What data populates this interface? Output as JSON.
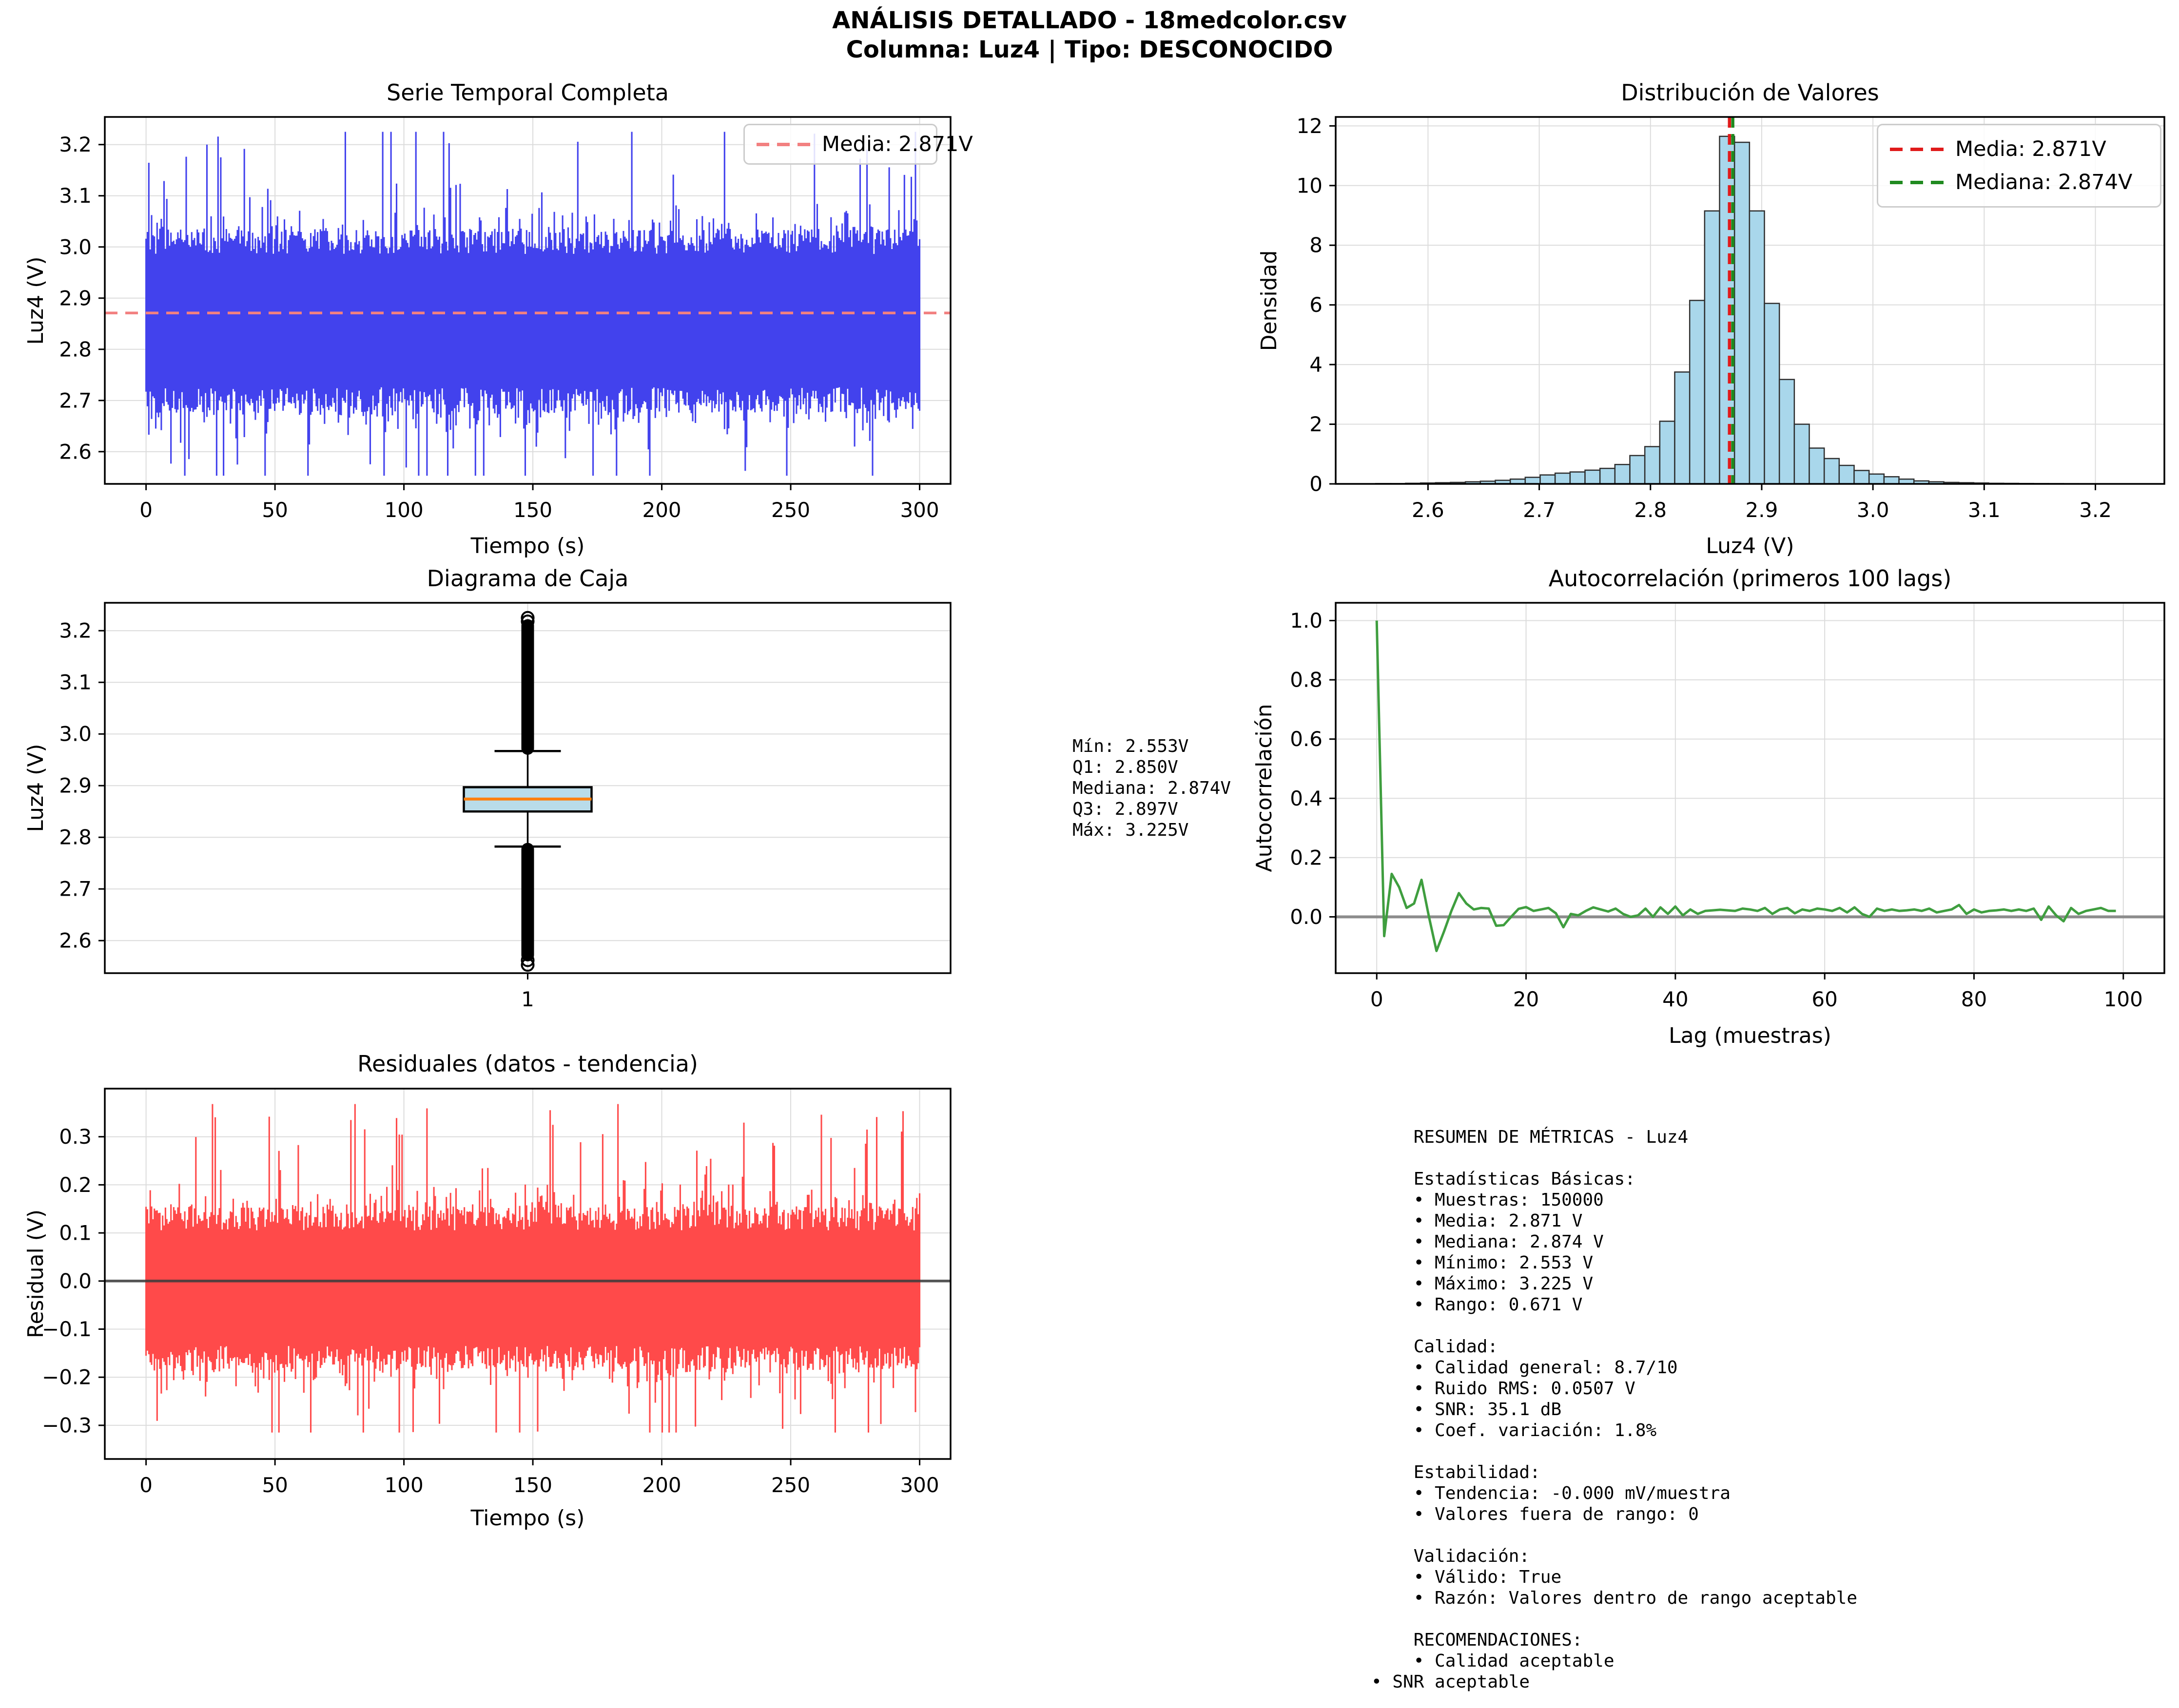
{
  "header": {
    "line1": "ANÁLISIS DETALLADO - 18medcolor.csv",
    "line2": "Columna: Luz4 | Tipo: DESCONOCIDO"
  },
  "colors": {
    "series_blue": "#4242ed",
    "mean_salmon": "#f28080",
    "hist_fill": "#a9d7eb",
    "hist_edge": "#2e2e2e",
    "mean_red": "#e01b1b",
    "median_green": "#1f8a1f",
    "box_fill": "#b9dcea",
    "box_median_orange": "#ff7f0e",
    "acf_green": "#3f9e3f",
    "acf_zero_gray": "#8c8c8c",
    "resid_red": "#ff4a4a",
    "resid_zero_dark": "#3c3c3c",
    "grid": "#dcdcdc",
    "spine": "#000000"
  },
  "chart_data": [
    {
      "id": "serie_temporal",
      "type": "line",
      "title": "Serie Temporal Completa",
      "xlabel": "Tiempo (s)",
      "ylabel": "Luz4 (V)",
      "xlim": [
        -16,
        312
      ],
      "ylim": [
        2.537,
        3.254
      ],
      "xticks": [
        0,
        50,
        100,
        150,
        200,
        250,
        300
      ],
      "xtick_labels": [
        "0",
        "50",
        "100",
        "150",
        "200",
        "250",
        "300"
      ],
      "yticks": [
        2.6,
        2.7,
        2.8,
        2.9,
        3.0,
        3.1,
        3.2
      ],
      "ytick_labels": [
        "2.6",
        "2.7",
        "2.8",
        "2.9",
        "3.0",
        "3.1",
        "3.2"
      ],
      "mean_line": {
        "value": 2.871,
        "label": "Media: 2.871V"
      },
      "legend": [
        {
          "label": "Media: 2.871V",
          "color": "#f28080"
        }
      ],
      "signal": {
        "mean": 2.871,
        "min": 2.553,
        "max": 3.225,
        "samples": 150000,
        "duration_s": 300,
        "seed": 42,
        "up_base": 0.115,
        "up_jit": 0.05,
        "dn_base": 0.145,
        "dn_jit": 0.05,
        "spike_p": 0.07,
        "spike_min": 0.05,
        "spike_jit": 0.2,
        "columns": 560
      }
    },
    {
      "id": "distribucion",
      "type": "bar",
      "title": "Distribución de Valores",
      "xlabel": "Luz4 (V)",
      "ylabel": "Densidad",
      "xlim": [
        2.517,
        3.262
      ],
      "ylim": [
        0,
        12.3
      ],
      "xticks": [
        2.6,
        2.7,
        2.8,
        2.9,
        3.0,
        3.1,
        3.2
      ],
      "xtick_labels": [
        "2.6",
        "2.7",
        "2.8",
        "2.9",
        "3.0",
        "3.1",
        "3.2"
      ],
      "yticks": [
        0,
        2,
        4,
        6,
        8,
        10,
        12
      ],
      "ytick_labels": [
        "0",
        "2",
        "4",
        "6",
        "8",
        "10",
        "12"
      ],
      "bin_start": 2.553,
      "bin_width": 0.01344,
      "densities": [
        0.01,
        0.01,
        0.02,
        0.03,
        0.04,
        0.05,
        0.07,
        0.09,
        0.12,
        0.16,
        0.22,
        0.3,
        0.36,
        0.4,
        0.46,
        0.52,
        0.65,
        0.95,
        1.25,
        2.1,
        3.75,
        6.15,
        9.15,
        11.65,
        11.45,
        9.15,
        6.05,
        3.5,
        2.0,
        1.2,
        0.85,
        0.62,
        0.45,
        0.33,
        0.24,
        0.16,
        0.1,
        0.07,
        0.05,
        0.04,
        0.03,
        0.02,
        0.017,
        0.013,
        0.01,
        0.008,
        0.006,
        0.005,
        0.004,
        0.003
      ],
      "mean_line": {
        "value": 2.871,
        "label": "Media: 2.871V"
      },
      "median_line": {
        "value": 2.874,
        "label": "Mediana: 2.874V"
      },
      "legend": [
        {
          "label": "Media: 2.871V",
          "color": "#e01b1b"
        },
        {
          "label": "Mediana: 2.874V",
          "color": "#1f8a1f"
        }
      ]
    },
    {
      "id": "diagrama_caja",
      "type": "box",
      "title": "Diagrama de Caja",
      "xlabel": "",
      "ylabel": "Luz4 (V)",
      "xlim": [
        0.5,
        1.5
      ],
      "ylim": [
        2.537,
        3.254
      ],
      "xticks": [
        1
      ],
      "xtick_labels": [
        "1"
      ],
      "yticks": [
        2.6,
        2.7,
        2.8,
        2.9,
        3.0,
        3.1,
        3.2
      ],
      "ytick_labels": [
        "2.6",
        "2.7",
        "2.8",
        "2.9",
        "3.0",
        "3.1",
        "3.2"
      ],
      "stats": {
        "min": 2.553,
        "q1": 2.85,
        "median": 2.874,
        "q3": 2.897,
        "max": 3.225,
        "whisker_low": 2.782,
        "whisker_high": 2.967
      },
      "outlier_band_high": [
        2.972,
        3.21
      ],
      "outlier_band_low": [
        2.572,
        2.777
      ],
      "extreme_high": [
        3.218,
        3.225
      ],
      "extreme_low": [
        2.562,
        2.553
      ]
    },
    {
      "id": "autocorrelacion",
      "type": "line",
      "title": "Autocorrelación (primeros 100 lags)",
      "xlabel": "Lag (muestras)",
      "ylabel": "Autocorrelación",
      "xlim": [
        -5.5,
        105.5
      ],
      "ylim": [
        -0.19,
        1.06
      ],
      "xticks": [
        0,
        20,
        40,
        60,
        80,
        100
      ],
      "xtick_labels": [
        "0",
        "20",
        "40",
        "60",
        "80",
        "100"
      ],
      "yticks": [
        0.0,
        0.2,
        0.4,
        0.6,
        0.8,
        1.0
      ],
      "ytick_labels": [
        "0.0",
        "0.2",
        "0.4",
        "0.6",
        "0.8",
        "1.0"
      ],
      "zero_line": 0.0,
      "values": [
        1.0,
        -0.065,
        0.145,
        0.1,
        0.03,
        0.045,
        0.125,
        0.0,
        -0.115,
        -0.05,
        0.02,
        0.08,
        0.045,
        0.025,
        0.03,
        0.028,
        -0.03,
        -0.028,
        0.0,
        0.027,
        0.033,
        0.02,
        0.025,
        0.03,
        0.012,
        -0.035,
        0.01,
        0.005,
        0.02,
        0.032,
        0.025,
        0.018,
        0.028,
        0.01,
        0.0,
        0.005,
        0.028,
        0.0,
        0.032,
        0.01,
        0.035,
        0.005,
        0.025,
        0.01,
        0.02,
        0.022,
        0.024,
        0.022,
        0.02,
        0.028,
        0.025,
        0.02,
        0.03,
        0.01,
        0.025,
        0.03,
        0.012,
        0.025,
        0.02,
        0.028,
        0.025,
        0.02,
        0.03,
        0.015,
        0.032,
        0.01,
        0.0,
        0.028,
        0.02,
        0.025,
        0.02,
        0.022,
        0.025,
        0.02,
        0.028,
        0.015,
        0.02,
        0.025,
        0.04,
        0.01,
        0.025,
        0.015,
        0.02,
        0.022,
        0.025,
        0.02,
        0.025,
        0.02,
        0.028,
        -0.01,
        0.035,
        0.005,
        -0.015,
        0.03,
        0.01,
        0.02,
        0.025,
        0.03,
        0.02,
        0.02
      ]
    },
    {
      "id": "residuales",
      "type": "line",
      "title": "Residuales (datos - tendencia)",
      "xlabel": "Tiempo (s)",
      "ylabel": "Residual (V)",
      "xlim": [
        -16,
        312
      ],
      "ylim": [
        -0.37,
        0.4
      ],
      "xticks": [
        0,
        50,
        100,
        150,
        200,
        250,
        300
      ],
      "xtick_labels": [
        "0",
        "50",
        "100",
        "150",
        "200",
        "250",
        "300"
      ],
      "yticks": [
        -0.3,
        -0.2,
        -0.1,
        0.0,
        0.1,
        0.2,
        0.3
      ],
      "ytick_labels": [
        "−0.3",
        "−0.2",
        "−0.1",
        "0.0",
        "0.1",
        "0.2",
        "0.3"
      ],
      "zero_line": 0.0,
      "signal": {
        "mean": 0,
        "min": -0.315,
        "max": 0.368,
        "duration_s": 300,
        "seed": 7,
        "up_base": 0.105,
        "up_jit": 0.05,
        "dn_base": 0.135,
        "dn_jit": 0.05,
        "spike_p": 0.07,
        "spike_min": 0.05,
        "spike_jit": 0.19,
        "columns": 560
      }
    }
  ],
  "box_stats_text": {
    "lines": [
      "Mín: 2.553V",
      "Q1: 2.850V",
      "Mediana: 2.874V",
      "Q3: 2.897V",
      "Máx: 3.225V"
    ]
  },
  "metrics": {
    "lines": [
      "    RESUMEN DE MÉTRICAS - Luz4",
      "",
      "    Estadísticas Básicas:",
      "    • Muestras: 150000",
      "    • Media: 2.871 V",
      "    • Mediana: 2.874 V",
      "    • Mínimo: 2.553 V",
      "    • Máximo: 3.225 V",
      "    • Rango: 0.671 V",
      "",
      "    Calidad:",
      "    • Calidad general: 8.7/10",
      "    • Ruido RMS: 0.0507 V",
      "    • SNR: 35.1 dB",
      "    • Coef. variación: 1.8%",
      "",
      "    Estabilidad:",
      "    • Tendencia: -0.000 mV/muestra",
      "    • Valores fuera de rango: 0",
      "",
      "    Validación:",
      "    • Válido: True",
      "    • Razón: Valores dentro de rango aceptable",
      "",
      "    RECOMENDACIONES:",
      "    • Calidad aceptable",
      "• SNR aceptable"
    ]
  }
}
